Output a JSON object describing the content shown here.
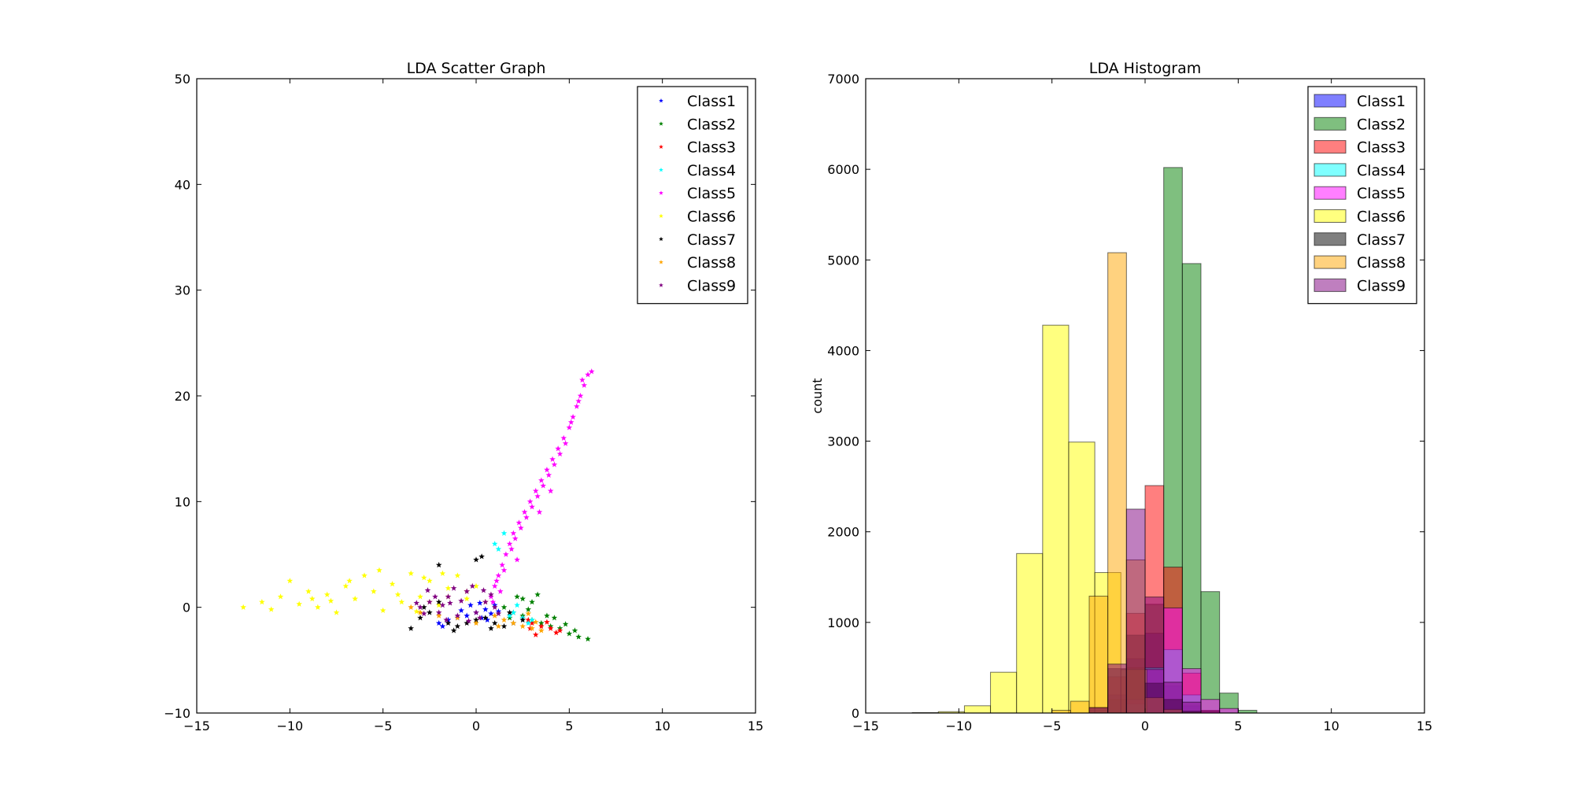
{
  "chart_data": [
    {
      "type": "scatter",
      "title": "LDA Scatter Graph",
      "xlabel": "",
      "ylabel": "",
      "xlim": [
        -15,
        15
      ],
      "ylim": [
        -10,
        50
      ],
      "xticks": [
        -15,
        -10,
        -5,
        0,
        5,
        10,
        15
      ],
      "yticks": [
        -10,
        0,
        10,
        20,
        30,
        40,
        50
      ],
      "marker": "star",
      "grid": false,
      "legend_position": "top-right",
      "series": [
        {
          "name": "Class1",
          "color": "#0000ff",
          "points": [
            [
              -2.0,
              -1.5
            ],
            [
              -1.5,
              -1.2
            ],
            [
              -1.0,
              -1.0
            ],
            [
              -0.5,
              -0.8
            ],
            [
              0.0,
              -0.5
            ],
            [
              0.5,
              -0.2
            ],
            [
              1.0,
              0.2
            ],
            [
              0.3,
              -1.0
            ],
            [
              -0.8,
              -0.3
            ],
            [
              0.8,
              -0.6
            ],
            [
              -1.8,
              -1.8
            ],
            [
              0.2,
              0.4
            ],
            [
              1.2,
              -0.4
            ],
            [
              -0.3,
              0.2
            ],
            [
              0.6,
              -1.2
            ]
          ]
        },
        {
          "name": "Class2",
          "color": "#008000",
          "points": [
            [
              1.5,
              0.0
            ],
            [
              2.0,
              -0.5
            ],
            [
              2.5,
              -0.8
            ],
            [
              3.0,
              -1.2
            ],
            [
              3.5,
              -1.5
            ],
            [
              4.0,
              -1.8
            ],
            [
              4.5,
              -2.0
            ],
            [
              5.0,
              -2.5
            ],
            [
              5.5,
              -2.8
            ],
            [
              6.0,
              -3.0
            ],
            [
              2.2,
              1.0
            ],
            [
              3.0,
              0.5
            ],
            [
              3.8,
              -0.8
            ],
            [
              4.2,
              -1.0
            ],
            [
              2.8,
              -0.2
            ],
            [
              3.3,
              1.2
            ],
            [
              4.8,
              -1.6
            ],
            [
              5.3,
              -2.2
            ],
            [
              2.5,
              0.8
            ],
            [
              1.8,
              -1.0
            ]
          ]
        },
        {
          "name": "Class3",
          "color": "#ff0000",
          "points": [
            [
              2.5,
              -1.0
            ],
            [
              3.0,
              -1.5
            ],
            [
              3.5,
              -1.8
            ],
            [
              4.0,
              -2.0
            ],
            [
              4.5,
              -2.2
            ],
            [
              3.2,
              -2.6
            ],
            [
              2.8,
              -1.2
            ],
            [
              3.8,
              -1.4
            ],
            [
              4.3,
              -2.4
            ],
            [
              2.9,
              -2.0
            ]
          ]
        },
        {
          "name": "Class4",
          "color": "#00ffff",
          "points": [
            [
              1.0,
              6.0
            ],
            [
              1.5,
              7.0
            ],
            [
              2.0,
              -0.5
            ],
            [
              2.5,
              -1.0
            ],
            [
              3.0,
              -1.2
            ],
            [
              1.8,
              -0.8
            ],
            [
              2.2,
              0.2
            ],
            [
              2.8,
              -1.5
            ],
            [
              1.2,
              5.5
            ]
          ]
        },
        {
          "name": "Class5",
          "color": "#ff00ff",
          "points": [
            [
              0.8,
              1.0
            ],
            [
              1.0,
              2.0
            ],
            [
              1.2,
              3.0
            ],
            [
              1.4,
              4.0
            ],
            [
              1.6,
              5.0
            ],
            [
              1.8,
              6.0
            ],
            [
              2.0,
              7.0
            ],
            [
              2.3,
              8.0
            ],
            [
              2.6,
              9.0
            ],
            [
              2.9,
              10.0
            ],
            [
              3.2,
              11.0
            ],
            [
              3.5,
              12.0
            ],
            [
              3.8,
              13.0
            ],
            [
              4.1,
              14.0
            ],
            [
              4.4,
              15.0
            ],
            [
              4.7,
              16.0
            ],
            [
              5.0,
              17.0
            ],
            [
              5.2,
              18.0
            ],
            [
              5.4,
              19.0
            ],
            [
              5.6,
              20.0
            ],
            [
              5.8,
              21.0
            ],
            [
              6.0,
              22.0
            ],
            [
              6.2,
              22.3
            ],
            [
              1.5,
              3.5
            ],
            [
              2.1,
              6.5
            ],
            [
              2.7,
              8.5
            ],
            [
              3.3,
              10.5
            ],
            [
              3.9,
              12.5
            ],
            [
              4.5,
              14.5
            ],
            [
              5.1,
              17.5
            ],
            [
              1.1,
              2.5
            ],
            [
              1.9,
              5.5
            ],
            [
              2.4,
              7.5
            ],
            [
              3.0,
              9.5
            ],
            [
              3.6,
              11.5
            ],
            [
              4.2,
              13.5
            ],
            [
              4.8,
              15.5
            ],
            [
              5.5,
              19.5
            ],
            [
              1.3,
              1.5
            ],
            [
              0.9,
              0.5
            ],
            [
              2.2,
              4.5
            ],
            [
              3.4,
              9.0
            ],
            [
              4.0,
              11.0
            ],
            [
              5.7,
              21.5
            ]
          ]
        },
        {
          "name": "Class6",
          "color": "#ffff00",
          "points": [
            [
              -12.5,
              0.0
            ],
            [
              -11.5,
              0.5
            ],
            [
              -11.0,
              -0.2
            ],
            [
              -10.5,
              1.0
            ],
            [
              -10.0,
              2.5
            ],
            [
              -9.5,
              0.3
            ],
            [
              -9.0,
              1.5
            ],
            [
              -8.5,
              0.0
            ],
            [
              -8.0,
              1.2
            ],
            [
              -7.5,
              -0.5
            ],
            [
              -7.0,
              2.0
            ],
            [
              -6.5,
              0.8
            ],
            [
              -6.0,
              3.0
            ],
            [
              -5.5,
              1.5
            ],
            [
              -5.0,
              -0.3
            ],
            [
              -4.5,
              2.2
            ],
            [
              -4.0,
              0.5
            ],
            [
              -3.5,
              3.2
            ],
            [
              -3.0,
              1.0
            ],
            [
              -2.5,
              2.5
            ],
            [
              -2.0,
              0.2
            ],
            [
              -1.5,
              1.8
            ],
            [
              -1.0,
              3.0
            ],
            [
              -0.5,
              0.8
            ],
            [
              0.0,
              2.0
            ],
            [
              -6.8,
              2.5
            ],
            [
              -5.2,
              3.5
            ],
            [
              -4.2,
              1.2
            ],
            [
              -3.2,
              -0.4
            ],
            [
              -8.8,
              0.8
            ],
            [
              -7.8,
              0.6
            ],
            [
              -2.8,
              2.8
            ],
            [
              -1.8,
              3.2
            ]
          ]
        },
        {
          "name": "Class7",
          "color": "#000000",
          "points": [
            [
              -3.5,
              -2.0
            ],
            [
              -3.0,
              -1.0
            ],
            [
              -2.5,
              -0.5
            ],
            [
              -2.0,
              0.5
            ],
            [
              -1.5,
              -1.5
            ],
            [
              -1.0,
              -1.8
            ],
            [
              -0.5,
              -1.5
            ],
            [
              0.0,
              -1.2
            ],
            [
              0.5,
              -1.0
            ],
            [
              1.0,
              -1.5
            ],
            [
              1.5,
              -1.8
            ],
            [
              2.0,
              -1.5
            ],
            [
              2.5,
              -1.2
            ],
            [
              -2.0,
              4.0
            ],
            [
              0.0,
              4.5
            ],
            [
              -1.2,
              -2.2
            ],
            [
              0.8,
              -2.0
            ],
            [
              -2.8,
              0.0
            ],
            [
              1.8,
              -0.5
            ],
            [
              0.3,
              4.8
            ]
          ]
        },
        {
          "name": "Class8",
          "color": "#ffa500",
          "points": [
            [
              -3.5,
              0.0
            ],
            [
              -3.0,
              -0.5
            ],
            [
              -2.5,
              0.5
            ],
            [
              -2.0,
              -0.8
            ],
            [
              -1.5,
              1.0
            ],
            [
              -1.0,
              -1.0
            ],
            [
              -0.5,
              1.5
            ],
            [
              0.0,
              -1.5
            ],
            [
              0.5,
              0.5
            ],
            [
              1.0,
              -0.8
            ],
            [
              1.5,
              -1.2
            ],
            [
              2.0,
              -1.5
            ],
            [
              2.5,
              -1.8
            ],
            [
              3.0,
              -2.0
            ],
            [
              3.5,
              -2.2
            ],
            [
              1.2,
              -1.8
            ],
            [
              2.8,
              -0.6
            ],
            [
              3.2,
              -1.4
            ]
          ]
        },
        {
          "name": "Class9",
          "color": "#800080",
          "points": [
            [
              -3.0,
              0.0
            ],
            [
              -2.5,
              0.5
            ],
            [
              -2.0,
              -0.5
            ],
            [
              -1.5,
              1.0
            ],
            [
              -1.0,
              -0.8
            ],
            [
              -0.5,
              1.5
            ],
            [
              0.0,
              -0.5
            ],
            [
              0.5,
              0.5
            ],
            [
              1.0,
              0.0
            ],
            [
              -2.8,
              -0.6
            ],
            [
              -2.2,
              1.0
            ],
            [
              -1.8,
              0.2
            ],
            [
              -1.2,
              1.8
            ],
            [
              -0.8,
              0.6
            ],
            [
              -0.2,
              2.0
            ],
            [
              0.2,
              -1.0
            ],
            [
              0.8,
              1.2
            ],
            [
              -3.2,
              0.4
            ],
            [
              -1.6,
              -1.2
            ],
            [
              -0.4,
              -1.3
            ],
            [
              1.2,
              -0.6
            ],
            [
              -2.6,
              1.6
            ],
            [
              0.4,
              1.6
            ],
            [
              -1.4,
              0.4
            ]
          ]
        }
      ]
    },
    {
      "type": "bar",
      "title": "LDA Histogram",
      "xlabel": "",
      "ylabel": "count",
      "xlim": [
        -15,
        15
      ],
      "ylim": [
        0,
        7000
      ],
      "xticks": [
        -15,
        -10,
        -5,
        0,
        5,
        10,
        15
      ],
      "yticks": [
        0,
        1000,
        2000,
        3000,
        4000,
        5000,
        6000,
        7000
      ],
      "grid": false,
      "legend_position": "top-right",
      "series": [
        {
          "name": "Class1",
          "color": "#0000ff",
          "bin_edges": [
            -2.0,
            -1.0,
            0.0,
            1.0,
            2.0,
            3.0
          ],
          "counts": [
            200,
            600,
            880,
            300,
            80
          ]
        },
        {
          "name": "Class2",
          "color": "#008000",
          "bin_edges": [
            -3.0,
            -2.0,
            -1.0,
            0.0,
            1.0,
            2.0,
            3.0,
            4.0,
            5.0,
            6.0
          ],
          "counts": [
            30,
            150,
            500,
            1200,
            6020,
            4960,
            1340,
            220,
            30
          ]
        },
        {
          "name": "Class3",
          "color": "#ff0000",
          "bin_edges": [
            -3.0,
            -2.0,
            -1.0,
            0.0,
            1.0,
            2.0,
            3.0,
            4.0
          ],
          "counts": [
            60,
            400,
            1100,
            2510,
            1610,
            440,
            30
          ]
        },
        {
          "name": "Class4",
          "color": "#00ffff",
          "bin_edges": [
            -1.0,
            0.0,
            1.0,
            2.0,
            3.0
          ],
          "counts": [
            100,
            500,
            700,
            200
          ]
        },
        {
          "name": "Class5",
          "color": "#ff00ff",
          "bin_edges": [
            -1.0,
            0.0,
            1.0,
            2.0,
            3.0,
            4.0,
            5.0
          ],
          "counts": [
            150,
            480,
            1160,
            490,
            150,
            50
          ]
        },
        {
          "name": "Class6",
          "color": "#ffff00",
          "bin_edges": [
            -12.5,
            -11.1,
            -9.7,
            -8.3,
            -6.9,
            -5.5,
            -4.1,
            -2.7,
            -1.3,
            0.1
          ],
          "counts": [
            5,
            15,
            80,
            450,
            1760,
            4280,
            2990,
            1550,
            480
          ]
        },
        {
          "name": "Class7",
          "color": "#000000",
          "bin_edges": [
            -3.0,
            -2.0,
            -1.0,
            0.0,
            1.0,
            2.0,
            3.0
          ],
          "counts": [
            60,
            490,
            860,
            330,
            150,
            20
          ]
        },
        {
          "name": "Class8",
          "color": "#ffa500",
          "bin_edges": [
            -5.0,
            -4.0,
            -3.0,
            -2.0,
            -1.0,
            0.0,
            1.0,
            2.0,
            3.0
          ],
          "counts": [
            30,
            130,
            1290,
            5080,
            1690,
            170,
            40,
            10
          ]
        },
        {
          "name": "Class9",
          "color": "#800080",
          "bin_edges": [
            -3.0,
            -2.0,
            -1.0,
            0.0,
            1.0,
            2.0,
            3.0,
            4.0
          ],
          "counts": [
            60,
            540,
            2250,
            1280,
            340,
            120,
            20
          ]
        }
      ]
    }
  ]
}
